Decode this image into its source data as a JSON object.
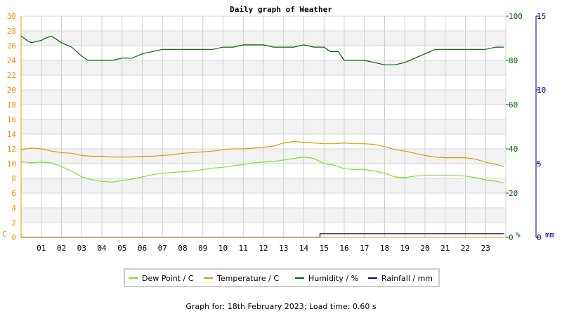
{
  "chart_data": {
    "type": "line",
    "title": "Daily graph of Weather",
    "x_tick_labels": [
      "01",
      "02",
      "03",
      "04",
      "05",
      "06",
      "07",
      "08",
      "09",
      "10",
      "11",
      "12",
      "13",
      "14",
      "15",
      "16",
      "17",
      "18",
      "19",
      "20",
      "21",
      "22",
      "23"
    ],
    "xlim": [
      0,
      24
    ],
    "axes": {
      "left": {
        "unit_label": "C",
        "ylim": [
          0,
          30
        ],
        "ticks": [
          0,
          2,
          4,
          6,
          8,
          10,
          12,
          14,
          16,
          18,
          20,
          22,
          24,
          26,
          28,
          30
        ],
        "color": "#e69500"
      },
      "right1": {
        "unit_label": "%",
        "ylim": [
          0,
          100
        ],
        "ticks": [
          0,
          20,
          40,
          60,
          80,
          100
        ],
        "color": "#006400"
      },
      "right2": {
        "unit_label": "mm",
        "ylim": [
          0,
          15
        ],
        "ticks": [
          0,
          5,
          10,
          15
        ],
        "color": "#00008b"
      }
    },
    "grid": true,
    "legend_position": "bottom",
    "series": [
      {
        "name": "Dew Point / C",
        "axis": "left",
        "color": "#7fe12a",
        "x": [
          0,
          0.5,
          1,
          1.5,
          2,
          2.5,
          3,
          3.5,
          4,
          4.5,
          5,
          5.5,
          6,
          6.5,
          7,
          7.5,
          8,
          8.5,
          9,
          9.5,
          10,
          10.5,
          11,
          11.5,
          12,
          12.5,
          13,
          13.5,
          14,
          14.5,
          15,
          15.5,
          16,
          16.5,
          17,
          17.5,
          18,
          18.5,
          19,
          19.5,
          20,
          20.5,
          21,
          21.5,
          22,
          22.5,
          23,
          23.5,
          23.9
        ],
        "y": [
          10.3,
          10.1,
          10.2,
          10.1,
          9.6,
          9,
          8.2,
          7.8,
          7.6,
          7.5,
          7.7,
          7.9,
          8.2,
          8.5,
          8.7,
          8.8,
          8.9,
          9,
          9.2,
          9.4,
          9.5,
          9.7,
          9.9,
          10.1,
          10.2,
          10.3,
          10.5,
          10.7,
          10.9,
          10.7,
          10,
          9.8,
          9.3,
          9.2,
          9.2,
          9,
          8.7,
          8.2,
          8.1,
          8.3,
          8.4,
          8.4,
          8.4,
          8.4,
          8.3,
          8.1,
          7.8,
          7.6,
          7.4
        ]
      },
      {
        "name": "Temperature / C",
        "axis": "left",
        "color": "#e69500",
        "x": [
          0,
          0.5,
          1,
          1.5,
          2,
          2.5,
          3,
          3.5,
          4,
          4.5,
          5,
          5.5,
          6,
          6.5,
          7,
          7.5,
          8,
          8.5,
          9,
          9.5,
          10,
          10.5,
          11,
          11.5,
          12,
          12.5,
          13,
          13.5,
          14,
          14.5,
          15,
          15.5,
          16,
          16.5,
          17,
          17.5,
          18,
          18.5,
          19,
          19.5,
          20,
          20.5,
          21,
          21.5,
          22,
          22.5,
          23,
          23.5,
          23.9
        ],
        "y": [
          11.9,
          12.1,
          12,
          11.7,
          11.5,
          11.4,
          11.1,
          11,
          11,
          10.9,
          10.9,
          10.9,
          11,
          11,
          11.1,
          11.2,
          11.4,
          11.5,
          11.6,
          11.7,
          11.9,
          12,
          12,
          12.1,
          12.2,
          12.4,
          12.8,
          13,
          12.9,
          12.8,
          12.7,
          12.7,
          12.8,
          12.7,
          12.7,
          12.6,
          12.3,
          11.9,
          11.7,
          11.4,
          11.1,
          10.9,
          10.8,
          10.8,
          10.8,
          10.6,
          10.2,
          9.9,
          9.6
        ]
      },
      {
        "name": "Humidity / %",
        "axis": "right1",
        "color": "#006400",
        "x": [
          0,
          0.3,
          0.5,
          1,
          1.2,
          1.5,
          2,
          2.5,
          3,
          3.3,
          3.5,
          4,
          4.5,
          5,
          5.5,
          6,
          6.5,
          7,
          7.5,
          8,
          8.5,
          9,
          9.5,
          10,
          10.5,
          11,
          11.5,
          12,
          12.5,
          13,
          13.5,
          14,
          14.5,
          15,
          15.3,
          15.7,
          16,
          16.5,
          17,
          17.5,
          18,
          18.5,
          19,
          19.5,
          20,
          20.5,
          21,
          21.5,
          22,
          22.5,
          23,
          23.5,
          23.9
        ],
        "y": [
          91,
          89,
          88,
          89,
          90,
          91,
          88,
          86,
          82,
          80,
          80,
          80,
          80,
          81,
          81,
          83,
          84,
          85,
          85,
          85,
          85,
          85,
          85,
          86,
          86,
          87,
          87,
          87,
          86,
          86,
          86,
          87,
          86,
          86,
          84,
          84,
          80,
          80,
          80,
          79,
          78,
          78,
          79,
          81,
          83,
          85,
          85,
          85,
          85,
          85,
          85,
          86,
          86
        ]
      },
      {
        "name": "Rainfall / mm",
        "axis": "right2",
        "color": "#00008b",
        "x": [
          0,
          14.8,
          14.8,
          23.9
        ],
        "y": [
          0,
          0,
          0.25,
          0.25
        ]
      }
    ]
  },
  "footer": {
    "text": "Graph for: 18th February 2023; Load time: 0.60 s"
  }
}
